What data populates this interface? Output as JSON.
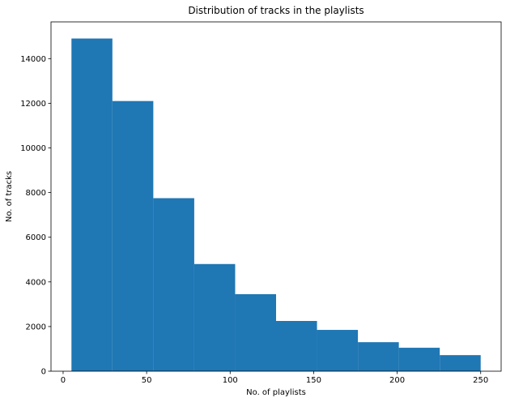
{
  "chart_data": {
    "type": "bar",
    "title": "Distribution of tracks in the playlists",
    "xlabel": "No. of playlists",
    "ylabel": "No. of tracks",
    "bins": [
      {
        "x0": 5,
        "x1": 29.5,
        "value": 14900
      },
      {
        "x0": 29.5,
        "x1": 54,
        "value": 12100
      },
      {
        "x0": 54,
        "x1": 78.5,
        "value": 7750
      },
      {
        "x0": 78.5,
        "x1": 103,
        "value": 4800
      },
      {
        "x0": 103,
        "x1": 127.5,
        "value": 3450
      },
      {
        "x0": 127.5,
        "x1": 152,
        "value": 2250
      },
      {
        "x0": 152,
        "x1": 176.5,
        "value": 1850
      },
      {
        "x0": 176.5,
        "x1": 201,
        "value": 1300
      },
      {
        "x0": 201,
        "x1": 225.5,
        "value": 1050
      },
      {
        "x0": 225.5,
        "x1": 250,
        "value": 720
      }
    ],
    "xlim": [
      -7.25,
      262.25
    ],
    "ylim": [
      0,
      15645
    ],
    "xticks": [
      0,
      50,
      100,
      150,
      200,
      250
    ],
    "yticks": [
      0,
      2000,
      4000,
      6000,
      8000,
      10000,
      12000,
      14000
    ],
    "bar_color": "#1f77b4",
    "grid": false,
    "legend": "none"
  }
}
